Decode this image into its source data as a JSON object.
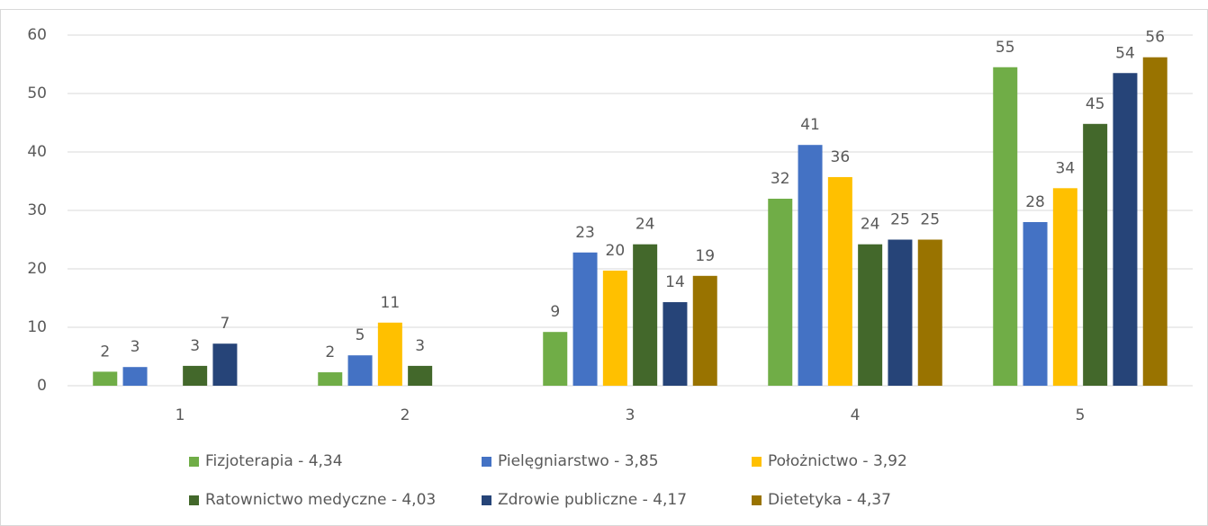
{
  "chart_data": {
    "type": "bar",
    "categories": [
      "1",
      "2",
      "3",
      "4",
      "5"
    ],
    "series": [
      {
        "name": "Fizjoterapia - 4,34",
        "color": "#70ad47",
        "values": [
          2.4,
          2.3,
          9.2,
          32,
          54.5
        ],
        "value_labels": [
          "2",
          "2",
          "9",
          "32",
          "55"
        ]
      },
      {
        "name": "Pielęgniarstwo - 3,85",
        "color": "#4472c4",
        "values": [
          3.2,
          5.2,
          22.8,
          41.2,
          28
        ],
        "value_labels": [
          "3",
          "5",
          "23",
          "41",
          "28"
        ]
      },
      {
        "name": "Położnictwo - 3,92",
        "color": "#ffc000",
        "values": [
          null,
          10.8,
          19.7,
          35.7,
          33.8
        ],
        "value_labels": [
          null,
          "11",
          "20",
          "36",
          "34"
        ]
      },
      {
        "name": "Ratownictwo medyczne - 4,03",
        "color": "#43682b",
        "values": [
          3.4,
          3.4,
          24.2,
          24.2,
          44.8
        ],
        "value_labels": [
          "3",
          "3",
          "24",
          "24",
          "45"
        ]
      },
      {
        "name": "Zdrowie publiczne - 4,17",
        "color": "#264478",
        "values": [
          7.2,
          null,
          14.3,
          25,
          53.5
        ],
        "value_labels": [
          "7",
          null,
          "14",
          "25",
          "54"
        ]
      },
      {
        "name": "Dietetyka - 4,37",
        "color": "#997300",
        "values": [
          null,
          null,
          18.8,
          25,
          56.2
        ],
        "value_labels": [
          null,
          null,
          "19",
          "25",
          "56"
        ]
      }
    ],
    "ylim": [
      0,
      60
    ],
    "yticks": [
      0,
      10,
      20,
      30,
      40,
      50,
      60
    ],
    "grid": true,
    "legend": "bottom"
  }
}
